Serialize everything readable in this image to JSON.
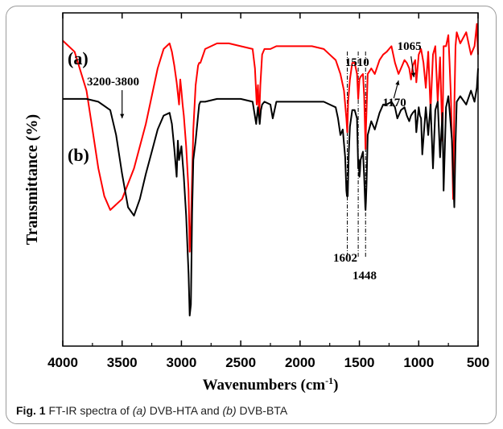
{
  "chart_data": {
    "type": "line",
    "xlabel": "Wavenumbers (cm",
    "xlabel_sup": "-1",
    "xlabel_end": ")",
    "ylabel": "Transmittance (%)",
    "xlim": [
      4000,
      500
    ],
    "x_reversed": true,
    "xticks": [
      4000,
      3500,
      3000,
      2500,
      2000,
      1500,
      1000,
      500
    ],
    "yticks_shown": false,
    "grid": false,
    "colors": {
      "a": "#ff0000",
      "b": "#000000"
    },
    "series": [
      {
        "name": "(a)",
        "color": "#ff0000",
        "x": [
          4000,
          3900,
          3800,
          3750,
          3700,
          3650,
          3600,
          3500,
          3400,
          3300,
          3200,
          3150,
          3100,
          3080,
          3060,
          3040,
          3020,
          3010,
          3000,
          2990,
          2980,
          2960,
          2940,
          2930,
          2920,
          2900,
          2880,
          2860,
          2850,
          2840,
          2800,
          2700,
          2600,
          2500,
          2400,
          2380,
          2365,
          2355,
          2345,
          2335,
          2320,
          2300,
          2250,
          2200,
          2000,
          1900,
          1800,
          1750,
          1700,
          1660,
          1630,
          1610,
          1602,
          1595,
          1580,
          1560,
          1540,
          1520,
          1510,
          1500,
          1490,
          1470,
          1460,
          1452,
          1448,
          1444,
          1430,
          1400,
          1370,
          1330,
          1300,
          1270,
          1230,
          1200,
          1170,
          1150,
          1120,
          1100,
          1080,
          1065,
          1050,
          1030,
          1020,
          1000,
          980,
          960,
          940,
          920,
          900,
          880,
          860,
          840,
          820,
          800,
          790,
          770,
          750,
          740,
          730,
          720,
          710,
          700,
          690,
          680,
          650,
          600,
          560,
          530,
          510,
          500
        ],
        "y": [
          11.0,
          10.6,
          9.2,
          7.8,
          6.4,
          5.4,
          4.9,
          5.3,
          6.4,
          8.0,
          10.0,
          10.7,
          10.9,
          10.6,
          10.1,
          9.5,
          8.7,
          9.6,
          9.2,
          8.7,
          8.3,
          7.2,
          5.6,
          3.4,
          4.3,
          7.8,
          9.4,
          10.1,
          10.2,
          10.2,
          10.7,
          10.9,
          10.9,
          10.8,
          10.7,
          10.0,
          8.7,
          9.4,
          8.2,
          9.4,
          10.5,
          10.7,
          10.7,
          10.8,
          10.8,
          10.8,
          10.7,
          10.5,
          10.3,
          9.8,
          9.2,
          8.2,
          7.7,
          8.8,
          9.6,
          10.2,
          10.2,
          9.8,
          8.9,
          9.6,
          9.7,
          9.8,
          9.0,
          7.8,
          7.1,
          7.9,
          9.8,
          10.0,
          9.8,
          10.3,
          10.5,
          10.6,
          10.8,
          10.2,
          9.8,
          10.0,
          10.3,
          10.2,
          10.0,
          9.6,
          10.1,
          10.3,
          9.5,
          10.5,
          10.7,
          10.2,
          9.3,
          10.6,
          8.5,
          10.5,
          10.8,
          8.8,
          10.4,
          7.4,
          10.8,
          10.8,
          11.2,
          10.2,
          9.1,
          7.5,
          5.3,
          8.6,
          10.8,
          11.3,
          10.9,
          11.3,
          10.5,
          10.8,
          11.6,
          10.5
        ]
      },
      {
        "name": "(b)",
        "color": "#000000",
        "x": [
          4000,
          3800,
          3700,
          3600,
          3550,
          3500,
          3450,
          3400,
          3350,
          3300,
          3250,
          3200,
          3150,
          3100,
          3080,
          3060,
          3040,
          3030,
          3020,
          3000,
          2980,
          2960,
          2940,
          2930,
          2920,
          2910,
          2900,
          2880,
          2860,
          2850,
          2840,
          2800,
          2700,
          2600,
          2500,
          2400,
          2370,
          2355,
          2340,
          2330,
          2320,
          2300,
          2250,
          2230,
          2200,
          2000,
          1900,
          1800,
          1750,
          1700,
          1680,
          1660,
          1640,
          1620,
          1610,
          1605,
          1602,
          1598,
          1590,
          1580,
          1560,
          1540,
          1520,
          1510,
          1505,
          1500,
          1495,
          1490,
          1470,
          1460,
          1450,
          1448,
          1445,
          1440,
          1430,
          1400,
          1370,
          1330,
          1300,
          1270,
          1230,
          1200,
          1180,
          1150,
          1120,
          1100,
          1080,
          1065,
          1050,
          1030,
          1020,
          1000,
          990,
          980,
          970,
          940,
          920,
          900,
          880,
          860,
          840,
          820,
          800,
          790,
          770,
          760,
          750,
          740,
          720,
          710,
          700,
          690,
          680,
          650,
          600,
          560,
          530,
          510,
          500
        ],
        "y": [
          8.9,
          8.9,
          8.8,
          8.5,
          7.6,
          6.2,
          5.0,
          4.7,
          5.3,
          6.2,
          7.0,
          7.8,
          8.3,
          8.4,
          8.0,
          7.1,
          6.1,
          7.4,
          6.7,
          7.2,
          6.1,
          4.7,
          2.6,
          1.1,
          1.5,
          4.8,
          6.7,
          7.4,
          8.3,
          8.7,
          8.8,
          8.8,
          8.9,
          8.9,
          8.9,
          8.8,
          8.0,
          8.6,
          8.0,
          8.5,
          8.7,
          8.8,
          8.7,
          8.2,
          8.8,
          8.8,
          8.8,
          8.8,
          8.7,
          8.6,
          8.2,
          7.6,
          7.8,
          6.8,
          5.6,
          5.4,
          5.8,
          5.4,
          6.9,
          7.9,
          8.5,
          8.5,
          8.2,
          6.4,
          6.7,
          6.1,
          6.3,
          6.7,
          7.0,
          6.1,
          5.0,
          4.9,
          5.2,
          5.8,
          7.6,
          8.1,
          7.8,
          8.4,
          8.7,
          8.7,
          8.8,
          8.6,
          8.2,
          8.5,
          8.6,
          8.3,
          8.1,
          8.3,
          8.4,
          8.5,
          7.7,
          8.6,
          8.3,
          8.2,
          6.9,
          8.6,
          7.6,
          8.7,
          6.4,
          8.5,
          8.8,
          6.8,
          8.4,
          5.6,
          8.6,
          8.8,
          9.0,
          8.5,
          7.4,
          6.2,
          5.0,
          7.3,
          8.8,
          9.0,
          8.7,
          9.2,
          8.8,
          9.3,
          10.0
        ]
      }
    ],
    "annotations": [
      {
        "text": "3200-3800",
        "x": 3500
      },
      {
        "text": "1510",
        "x": 1510
      },
      {
        "text": "1065",
        "x": 1065
      },
      {
        "text": "1170",
        "x": 1170
      },
      {
        "text": "1602",
        "x": 1602
      },
      {
        "text": "1448",
        "x": 1448
      }
    ],
    "reference_lines": [
      1602,
      1510,
      1448
    ]
  },
  "caption": {
    "fig_label": "Fig. 1",
    "text1": " FT-IR spectra of ",
    "a_label": "(a)",
    "text2": " DVB-HTA and ",
    "b_label": "(b)",
    "text3": " DVB-BTA"
  }
}
